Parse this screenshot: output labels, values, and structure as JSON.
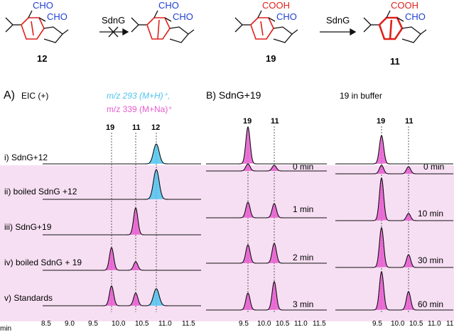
{
  "scheme": {
    "compounds": [
      {
        "id": "12",
        "groups": [
          "CHO",
          "CHO"
        ]
      },
      {
        "id": "",
        "groups": [
          "CHO",
          "CHO"
        ]
      },
      {
        "id": "19",
        "groups": [
          "COOH",
          "CHO"
        ]
      },
      {
        "id": "11",
        "groups": [
          "COOH",
          "CHO"
        ]
      }
    ],
    "arrow1_label": "SdnG",
    "arrow2_label": "SdnG"
  },
  "panelA": {
    "label": "A)",
    "ms_cyan": "m/z 293 (M+H)⁺,",
    "ms_pink": "m/z 339 (M+Na)⁺",
    "ms_prefix": "EIC (+)",
    "peak_labels": [
      "19",
      "11",
      "12"
    ],
    "rows": [
      "i) SdnG+12",
      "ii) boiled SdnG +12",
      "iii) SdnG+19",
      "iv) boiled SdnG + 19",
      "v) Standards"
    ],
    "axis_ticks": [
      "8.5",
      "9.0",
      "9.5",
      "10.0",
      "10.5",
      "11.0",
      "11.5"
    ],
    "axis_unit": "min"
  },
  "panelB": {
    "label": "B) SdnG+19",
    "left_peak_labels": [
      "19",
      "11"
    ],
    "left_times": [
      "0 min",
      "1 min",
      "2 min",
      "3 min"
    ],
    "right_title": "19 in buffer",
    "right_peak_labels": [
      "19",
      "11"
    ],
    "right_times": [
      "0 min",
      "10 min",
      "30 min",
      "60 min"
    ],
    "axis_ticks": [
      "9.5",
      "10.0",
      "10.5",
      "11.0",
      "11.5"
    ],
    "axis_unit": "min"
  },
  "colors": {
    "blue": "#1f3fd1",
    "red": "#e0201b",
    "pink_fill": "#e85bd0",
    "pink_bg": "#f7dff3",
    "cyan": "#4fc4ef",
    "black": "#111111"
  }
}
